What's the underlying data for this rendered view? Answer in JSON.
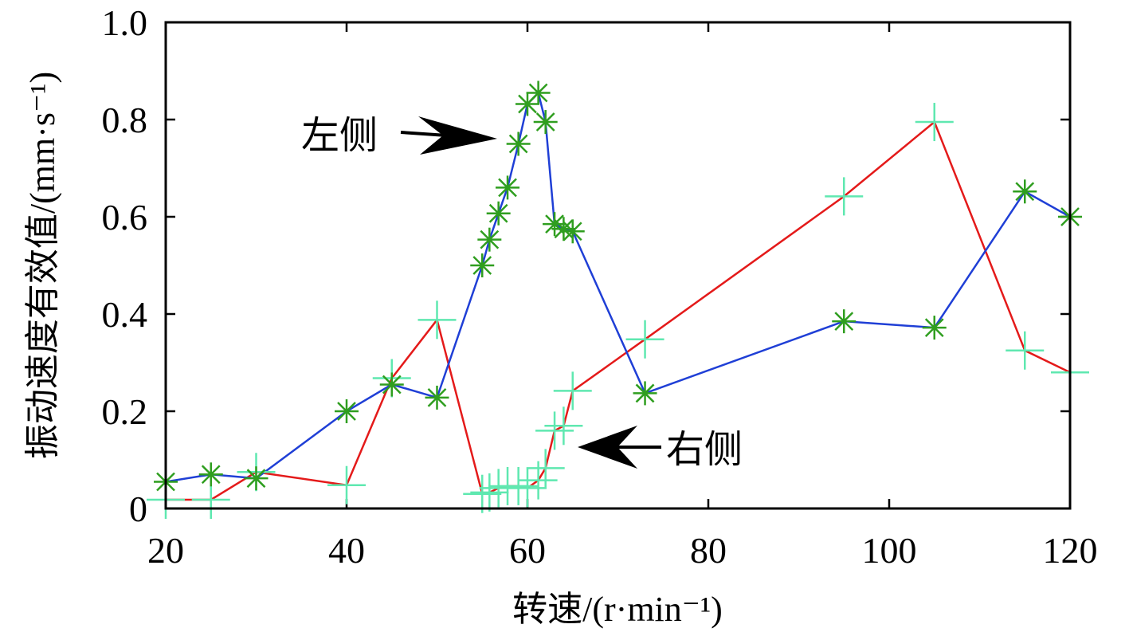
{
  "chart_data": {
    "type": "line",
    "title": "",
    "xlabel": "转速/(r·min⁻¹)",
    "ylabel": "振动速度有效值/(mm·s⁻¹)",
    "xlim": [
      20,
      120
    ],
    "ylim": [
      0,
      1.0
    ],
    "xticks": [
      "20",
      "40",
      "60",
      "80",
      "100",
      "120"
    ],
    "yticks": [
      "0",
      "0.2",
      "0.4",
      "0.6",
      "0.8",
      "1.0"
    ],
    "grid": false,
    "series": [
      {
        "name": "左侧",
        "color": "#1f3fd6",
        "marker": "asterisk",
        "marker_color": "#2f9e1f",
        "x": [
          20,
          25,
          30,
          40,
          45,
          50,
          55,
          55.8,
          56.8,
          57.8,
          59,
          60,
          61.2,
          62,
          63,
          64,
          65,
          73,
          95,
          105,
          115,
          120
        ],
        "y": [
          0.055,
          0.07,
          0.062,
          0.2,
          0.255,
          0.228,
          0.5,
          0.553,
          0.607,
          0.66,
          0.75,
          0.832,
          0.855,
          0.795,
          0.585,
          0.575,
          0.57,
          0.237,
          0.385,
          0.372,
          0.652,
          0.6
        ]
      },
      {
        "name": "右侧",
        "color": "#e41a1a",
        "marker": "plus",
        "marker_color": "#5fe8b0",
        "x": [
          20,
          25,
          30,
          40,
          45,
          50,
          55,
          55.8,
          56.8,
          57.8,
          59,
          60,
          61.2,
          62,
          63,
          64,
          65,
          73,
          95,
          105,
          115,
          120
        ],
        "y": [
          0.018,
          0.018,
          0.075,
          0.048,
          0.268,
          0.388,
          0.03,
          0.033,
          0.042,
          0.046,
          0.046,
          0.042,
          0.058,
          0.083,
          0.16,
          0.17,
          0.242,
          0.348,
          0.642,
          0.795,
          0.325,
          0.28
        ]
      }
    ],
    "annotations": [
      {
        "text": "左侧",
        "target_series": "左侧"
      },
      {
        "text": "右侧",
        "target_series": "右侧"
      }
    ]
  }
}
